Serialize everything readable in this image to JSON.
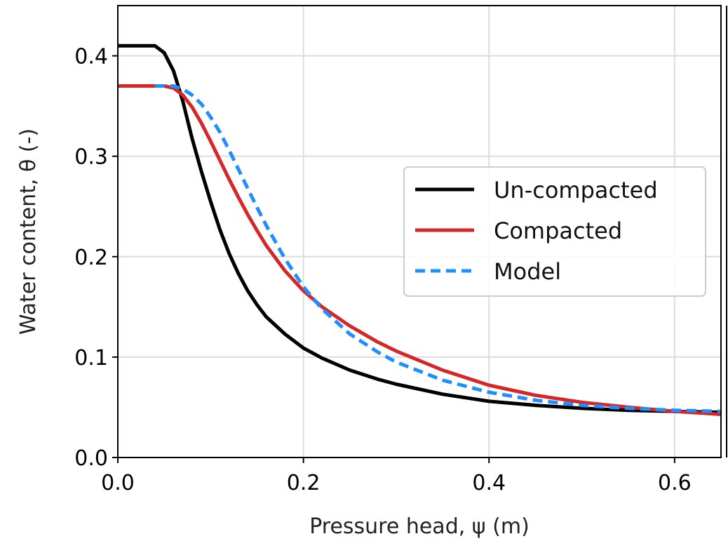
{
  "chart_data": {
    "type": "line",
    "xlabel": "Pressure head, ψ (m)",
    "ylabel": "Water content, θ (-)",
    "xlim": [
      0.0,
      0.65
    ],
    "ylim": [
      0.0,
      0.45
    ],
    "xticks": [
      "0.0",
      "0.2",
      "0.4",
      "0.6"
    ],
    "xtick_values": [
      0.0,
      0.2,
      0.4,
      0.6
    ],
    "yticks": [
      "0.0",
      "0.1",
      "0.2",
      "0.3",
      "0.4"
    ],
    "ytick_values": [
      0.0,
      0.1,
      0.2,
      0.3,
      0.4
    ],
    "grid": true,
    "legend_position": "center-right",
    "series": [
      {
        "name": "Un-compacted",
        "color": "#000000",
        "style": "solid",
        "x": [
          0.0,
          0.02,
          0.04,
          0.05,
          0.06,
          0.07,
          0.08,
          0.09,
          0.1,
          0.11,
          0.12,
          0.13,
          0.14,
          0.15,
          0.16,
          0.18,
          0.2,
          0.22,
          0.25,
          0.28,
          0.3,
          0.35,
          0.4,
          0.45,
          0.5,
          0.55,
          0.6,
          0.65
        ],
        "y": [
          0.41,
          0.41,
          0.41,
          0.403,
          0.385,
          0.355,
          0.318,
          0.285,
          0.255,
          0.227,
          0.203,
          0.183,
          0.166,
          0.152,
          0.14,
          0.123,
          0.109,
          0.099,
          0.087,
          0.078,
          0.073,
          0.063,
          0.056,
          0.052,
          0.049,
          0.047,
          0.046,
          0.045
        ]
      },
      {
        "name": "Compacted",
        "color": "#d62728",
        "style": "solid",
        "x": [
          0.0,
          0.02,
          0.04,
          0.05,
          0.06,
          0.07,
          0.08,
          0.09,
          0.1,
          0.11,
          0.12,
          0.13,
          0.14,
          0.15,
          0.16,
          0.18,
          0.2,
          0.22,
          0.25,
          0.28,
          0.3,
          0.35,
          0.4,
          0.45,
          0.5,
          0.55,
          0.6,
          0.65
        ],
        "y": [
          0.37,
          0.37,
          0.37,
          0.37,
          0.368,
          0.361,
          0.349,
          0.333,
          0.315,
          0.296,
          0.277,
          0.259,
          0.242,
          0.226,
          0.211,
          0.186,
          0.166,
          0.15,
          0.131,
          0.115,
          0.106,
          0.087,
          0.072,
          0.062,
          0.055,
          0.05,
          0.046,
          0.043
        ]
      },
      {
        "name": "Model",
        "color": "#1f8fff",
        "style": "dashed",
        "x": [
          0.04,
          0.05,
          0.06,
          0.07,
          0.08,
          0.09,
          0.1,
          0.11,
          0.12,
          0.13,
          0.14,
          0.15,
          0.16,
          0.18,
          0.2,
          0.22,
          0.25,
          0.28,
          0.3,
          0.35,
          0.4,
          0.45,
          0.5,
          0.55,
          0.6,
          0.65
        ],
        "y": [
          0.37,
          0.37,
          0.37,
          0.367,
          0.361,
          0.352,
          0.339,
          0.324,
          0.306,
          0.287,
          0.268,
          0.249,
          0.231,
          0.198,
          0.17,
          0.148,
          0.123,
          0.105,
          0.095,
          0.077,
          0.065,
          0.057,
          0.052,
          0.049,
          0.047,
          0.046
        ]
      }
    ]
  }
}
